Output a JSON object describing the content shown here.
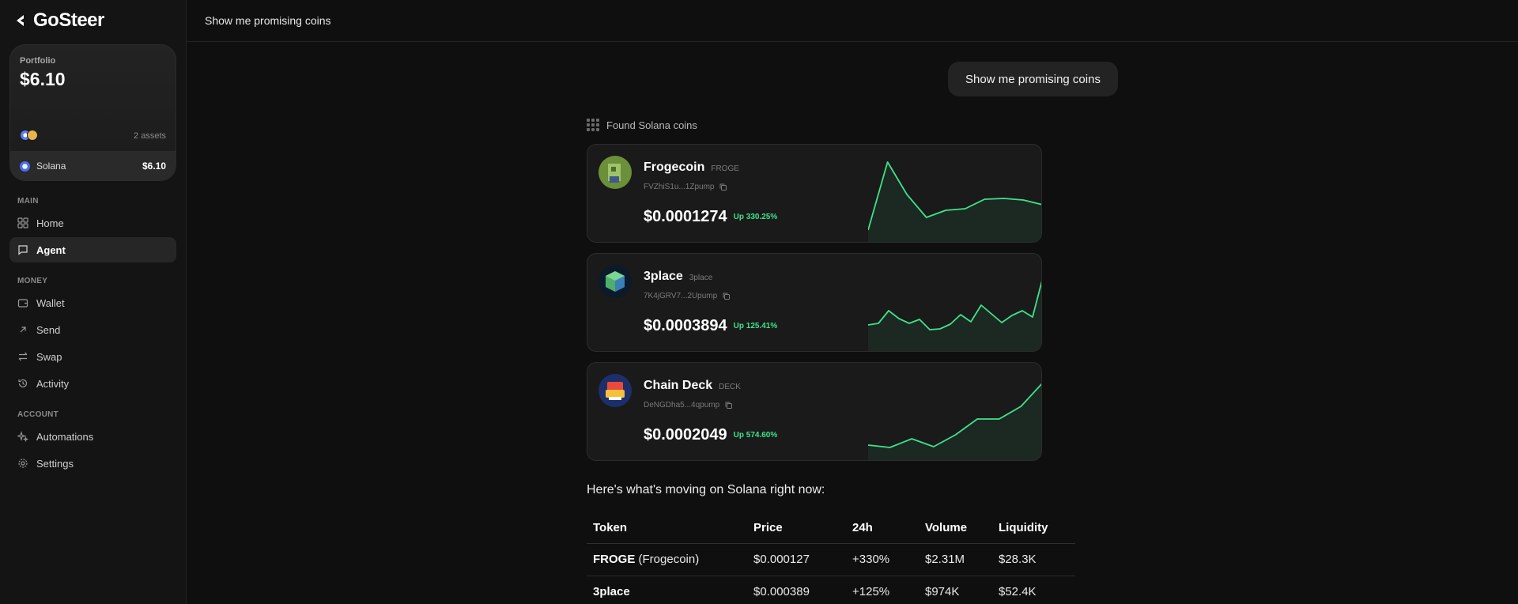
{
  "app": {
    "name": "GoSteer"
  },
  "sidebar": {
    "portfolio": {
      "label": "Portfolio",
      "value": "$6.10",
      "assets_count": "2 assets",
      "holding": {
        "name": "Solana",
        "value": "$6.10"
      }
    },
    "sections": {
      "main": "MAIN",
      "money": "MONEY",
      "account": "ACCOUNT"
    },
    "items": {
      "home": "Home",
      "agent": "Agent",
      "wallet": "Wallet",
      "send": "Send",
      "swap": "Swap",
      "activity": "Activity",
      "automations": "Automations",
      "settings": "Settings"
    }
  },
  "topbar": {
    "title": "Show me promising coins"
  },
  "chat": {
    "user_message": "Show me promising coins",
    "found_label": "Found Solana coins",
    "coins": [
      {
        "name": "Frogecoin",
        "symbol": "FROGE",
        "address": "FVZhiS1u...1Zpump",
        "price": "$0.0001274",
        "change": "Up 330.25%",
        "spark": [
          2,
          88,
          47,
          18,
          27,
          29,
          41,
          42,
          40,
          34
        ]
      },
      {
        "name": "3place",
        "symbol": "3place",
        "address": "7K4jGRV7...2Upump",
        "price": "$0.0003894",
        "change": "Up 125.41%",
        "spark": [
          20,
          22,
          38,
          28,
          22,
          27,
          14,
          15,
          21,
          33,
          24,
          45,
          34,
          23,
          32,
          38,
          30,
          80
        ]
      },
      {
        "name": "Chain Deck",
        "symbol": "DECK",
        "address": "DeNGDha5...4qpump",
        "price": "$0.0002049",
        "change": "Up 574.60%",
        "spark": [
          6,
          3,
          14,
          4,
          19,
          39,
          39,
          55,
          85
        ]
      }
    ],
    "summary": "Here's what's moving on Solana right now:",
    "table": {
      "headers": [
        "Token",
        "Price",
        "24h",
        "Volume",
        "Liquidity"
      ],
      "rows": [
        {
          "token_bold": "FROGE",
          "token_rest": " (Frogecoin)",
          "price": "$0.000127",
          "change": "+330%",
          "volume": "$2.31M",
          "liquidity": "$28.3K"
        },
        {
          "token_bold": "3place",
          "token_rest": "",
          "price": "$0.000389",
          "change": "+125%",
          "volume": "$974K",
          "liquidity": "$52.4K"
        }
      ]
    }
  },
  "colors": {
    "accent_green": "#3de38a",
    "background": "#0f0f0f",
    "card": "#1a1a1a"
  }
}
